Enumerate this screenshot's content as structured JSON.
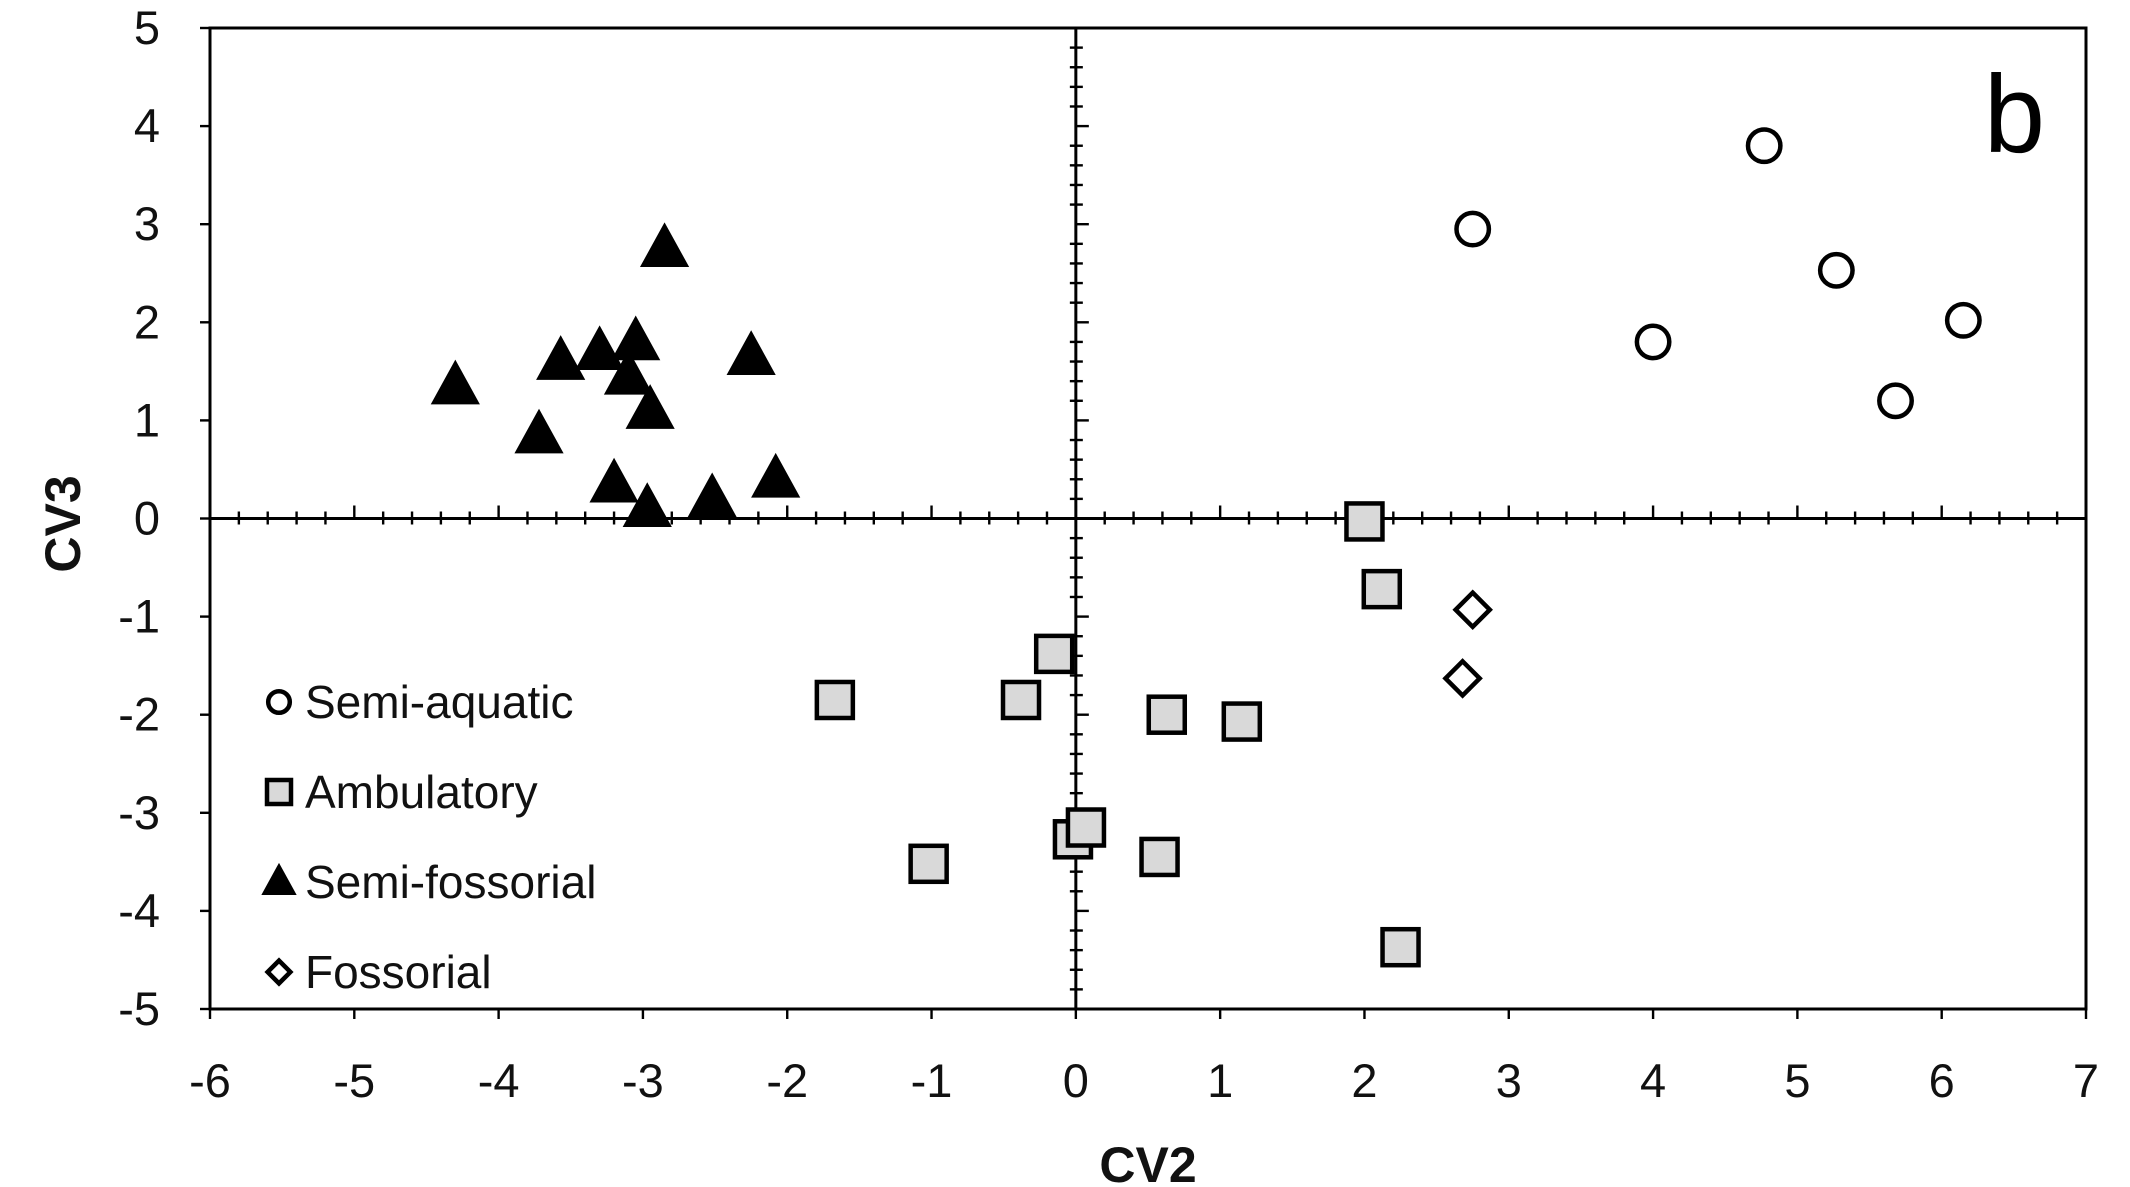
{
  "chart_data": {
    "type": "scatter",
    "panel_label": "b",
    "xlabel": "CV2",
    "ylabel": "CV3",
    "xlim": [
      -6,
      7
    ],
    "ylim": [
      -5,
      5
    ],
    "x_ticks": [
      "-6",
      "-5",
      "-4",
      "-3",
      "-2",
      "-1",
      "0",
      "1",
      "2",
      "3",
      "4",
      "5",
      "6",
      "7"
    ],
    "y_ticks": [
      "5",
      "4",
      "3",
      "2",
      "1",
      "0",
      "-1",
      "-2",
      "-3",
      "-4",
      "-5"
    ],
    "legend_position": "bottom-left",
    "series": [
      {
        "name": "Semi-aquatic",
        "marker": "circle",
        "fill": "#ffffff",
        "stroke": "#000000",
        "points": [
          [
            2.75,
            2.95
          ],
          [
            4.0,
            1.8
          ],
          [
            4.77,
            3.8
          ],
          [
            5.27,
            2.53
          ],
          [
            5.68,
            1.2
          ],
          [
            6.15,
            2.02
          ]
        ]
      },
      {
        "name": "Ambulatory",
        "marker": "square",
        "fill": "#d9d9d9",
        "stroke": "#000000",
        "points": [
          [
            2.0,
            -0.03
          ],
          [
            2.12,
            -0.72
          ],
          [
            -1.67,
            -1.85
          ],
          [
            -0.38,
            -1.85
          ],
          [
            -0.15,
            -1.38
          ],
          [
            0.63,
            -2.0
          ],
          [
            1.15,
            -2.07
          ],
          [
            -1.02,
            -3.52
          ],
          [
            -0.02,
            -3.27
          ],
          [
            0.07,
            -3.15
          ],
          [
            0.58,
            -3.45
          ],
          [
            2.25,
            -4.37
          ]
        ]
      },
      {
        "name": "Semi-fossorial",
        "marker": "triangle",
        "fill": "#000000",
        "stroke": "#000000",
        "points": [
          [
            -4.3,
            1.35
          ],
          [
            -3.72,
            0.85
          ],
          [
            -3.57,
            1.6
          ],
          [
            -3.3,
            1.7
          ],
          [
            -3.2,
            0.35
          ],
          [
            -3.05,
            1.8
          ],
          [
            -3.1,
            1.45
          ],
          [
            -2.95,
            1.1
          ],
          [
            -2.97,
            0.1
          ],
          [
            -2.85,
            2.75
          ],
          [
            -2.52,
            0.2
          ],
          [
            -2.25,
            1.65
          ],
          [
            -2.08,
            0.4
          ]
        ]
      },
      {
        "name": "Fossorial",
        "marker": "diamond",
        "fill": "#ffffff",
        "stroke": "#000000",
        "points": [
          [
            2.75,
            -0.93
          ],
          [
            2.68,
            -1.63
          ]
        ]
      }
    ]
  }
}
